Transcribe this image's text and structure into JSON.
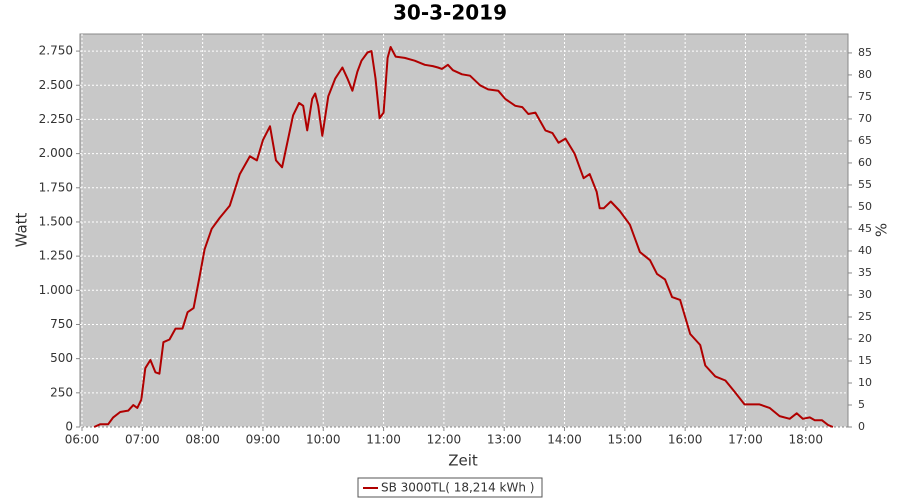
{
  "chart_data": {
    "type": "line",
    "title": "30-3-2019",
    "x_label": "Zeit",
    "y_label": "Watt",
    "y2_label": "%",
    "grid": true,
    "legend": "bottom",
    "x": [
      372,
      378,
      386,
      391,
      398,
      406,
      411,
      415,
      419,
      423,
      428,
      433,
      437,
      441,
      447,
      453,
      460,
      465,
      471,
      477,
      482,
      489,
      497,
      507,
      517,
      527,
      534,
      540,
      547,
      553,
      559,
      570,
      576,
      580,
      584,
      589,
      592,
      595,
      599,
      605,
      612,
      619,
      624,
      629,
      634,
      638,
      644,
      648,
      652,
      656,
      660,
      664,
      667,
      672,
      681,
      691,
      701,
      709,
      714,
      718,
      724,
      729,
      738,
      746,
      756,
      764,
      774,
      781,
      791,
      798,
      804,
      811,
      821,
      828,
      834,
      841,
      850,
      855,
      859,
      865,
      872,
      875,
      879,
      886,
      895,
      905,
      915,
      925,
      932,
      940,
      947,
      955,
      965,
      975,
      980,
      990,
      1000,
      1009,
      1019,
      1034,
      1044,
      1054,
      1064,
      1071,
      1077,
      1084,
      1089,
      1096,
      1102,
      1107
    ],
    "series": [
      {
        "name": "SB 3000TL( 18,214 kWh )",
        "color": "#b00000",
        "values": [
          0,
          20,
          20,
          70,
          110,
          120,
          160,
          140,
          200,
          430,
          490,
          400,
          390,
          620,
          640,
          720,
          720,
          840,
          870,
          1100,
          1300,
          1450,
          1530,
          1620,
          1850,
          1980,
          1950,
          2100,
          2200,
          1950,
          1900,
          2280,
          2370,
          2350,
          2170,
          2400,
          2440,
          2350,
          2130,
          2420,
          2550,
          2630,
          2550,
          2460,
          2600,
          2680,
          2740,
          2750,
          2550,
          2260,
          2300,
          2700,
          2780,
          2710,
          2700,
          2680,
          2650,
          2640,
          2630,
          2620,
          2650,
          2610,
          2580,
          2570,
          2500,
          2470,
          2460,
          2400,
          2350,
          2340,
          2290,
          2300,
          2170,
          2150,
          2080,
          2110,
          2000,
          1900,
          1820,
          1850,
          1720,
          1600,
          1600,
          1650,
          1580,
          1480,
          1280,
          1220,
          1120,
          1080,
          950,
          930,
          680,
          600,
          450,
          370,
          340,
          260,
          165,
          165,
          140,
          80,
          60,
          100,
          60,
          70,
          50,
          50,
          15,
          0
        ]
      }
    ],
    "xlim": [
      358,
      1122
    ],
    "xticks": [
      {
        "value": 360,
        "label": "06:00"
      },
      {
        "value": 420,
        "label": "07:00"
      },
      {
        "value": 480,
        "label": "08:00"
      },
      {
        "value": 540,
        "label": "09:00"
      },
      {
        "value": 600,
        "label": "10:00"
      },
      {
        "value": 660,
        "label": "11:00"
      },
      {
        "value": 720,
        "label": "12:00"
      },
      {
        "value": 780,
        "label": "13:00"
      },
      {
        "value": 840,
        "label": "14:00"
      },
      {
        "value": 900,
        "label": "15:00"
      },
      {
        "value": 960,
        "label": "16:00"
      },
      {
        "value": 1020,
        "label": "17:00"
      },
      {
        "value": 1080,
        "label": "18:00"
      }
    ],
    "ylim": [
      0,
      2875
    ],
    "yticks": [
      0,
      250,
      500,
      750,
      {
        "value": 1000,
        "label": "1.000"
      },
      {
        "value": 1250,
        "label": "1.250"
      },
      {
        "value": 1500,
        "label": "1.500"
      },
      {
        "value": 1750,
        "label": "1.750"
      },
      {
        "value": 2000,
        "label": "2.000"
      },
      {
        "value": 2250,
        "label": "2.250"
      },
      {
        "value": 2500,
        "label": "2.500"
      },
      {
        "value": 2750,
        "label": "2.750"
      }
    ],
    "y2lim": [
      0,
      89.3
    ],
    "y2ticks": [
      0,
      5,
      10,
      15,
      20,
      25,
      30,
      35,
      40,
      45,
      50,
      55,
      60,
      65,
      70,
      75,
      80,
      85
    ]
  }
}
